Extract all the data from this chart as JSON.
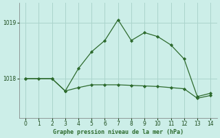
{
  "title": "Graphe pression niveau de la mer (hPa)",
  "bg_color": "#cceee8",
  "line_color": "#2d6a2d",
  "grid_color": "#aad4cc",
  "x_ticks": [
    0,
    1,
    2,
    3,
    4,
    5,
    6,
    7,
    8,
    9,
    10,
    11,
    12,
    13,
    14
  ],
  "y_ticks": [
    1018,
    1019
  ],
  "ylim": [
    1017.3,
    1019.35
  ],
  "xlim": [
    -0.5,
    14.5
  ],
  "line1_x": [
    0,
    1,
    2,
    3,
    4,
    5,
    6,
    7,
    8,
    9,
    10,
    11,
    12,
    13,
    14
  ],
  "line1_y": [
    1018.0,
    1018.0,
    1018.0,
    1017.78,
    1017.84,
    1017.89,
    1017.89,
    1017.89,
    1017.88,
    1017.87,
    1017.86,
    1017.84,
    1017.82,
    1017.65,
    1017.7
  ],
  "line2_x": [
    0,
    2,
    3,
    4,
    5,
    6,
    7,
    8,
    9,
    10,
    11,
    12,
    13,
    14
  ],
  "line2_y": [
    1018.0,
    1018.0,
    1017.78,
    1018.18,
    1018.48,
    1018.68,
    1019.05,
    1018.68,
    1018.82,
    1018.75,
    1018.6,
    1018.35,
    1017.68,
    1017.74
  ]
}
